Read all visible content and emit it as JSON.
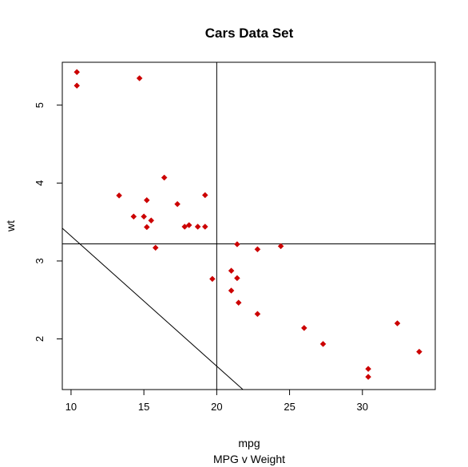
{
  "chart_data": {
    "type": "scatter",
    "title": "Cars Data Set",
    "xlabel": "mpg",
    "ylabel": "wt",
    "subtitle": "MPG v Weight",
    "xlim": [
      9.4,
      35.0
    ],
    "ylim": [
      1.35,
      5.55
    ],
    "xticks": [
      10,
      15,
      20,
      25,
      30
    ],
    "yticks": [
      2,
      3,
      4,
      5
    ],
    "grid": false,
    "legend": "none",
    "point_color": "#cc0000",
    "line_color": "#000000",
    "points": [
      {
        "x": 21.0,
        "y": 2.62
      },
      {
        "x": 21.0,
        "y": 2.875
      },
      {
        "x": 22.8,
        "y": 2.32
      },
      {
        "x": 21.4,
        "y": 3.215
      },
      {
        "x": 18.7,
        "y": 3.44
      },
      {
        "x": 18.1,
        "y": 3.46
      },
      {
        "x": 14.3,
        "y": 3.57
      },
      {
        "x": 24.4,
        "y": 3.19
      },
      {
        "x": 22.8,
        "y": 3.15
      },
      {
        "x": 19.2,
        "y": 3.44
      },
      {
        "x": 17.8,
        "y": 3.44
      },
      {
        "x": 16.4,
        "y": 4.07
      },
      {
        "x": 17.3,
        "y": 3.73
      },
      {
        "x": 15.2,
        "y": 3.78
      },
      {
        "x": 10.4,
        "y": 5.25
      },
      {
        "x": 10.4,
        "y": 5.424
      },
      {
        "x": 14.7,
        "y": 5.345
      },
      {
        "x": 32.4,
        "y": 2.2
      },
      {
        "x": 30.4,
        "y": 1.615
      },
      {
        "x": 33.9,
        "y": 1.835
      },
      {
        "x": 21.5,
        "y": 2.465
      },
      {
        "x": 15.5,
        "y": 3.52
      },
      {
        "x": 15.2,
        "y": 3.435
      },
      {
        "x": 13.3,
        "y": 3.84
      },
      {
        "x": 19.2,
        "y": 3.845
      },
      {
        "x": 27.3,
        "y": 1.935
      },
      {
        "x": 26.0,
        "y": 2.14
      },
      {
        "x": 30.4,
        "y": 1.513
      },
      {
        "x": 15.8,
        "y": 3.17
      },
      {
        "x": 19.7,
        "y": 2.77
      },
      {
        "x": 15.0,
        "y": 3.57
      },
      {
        "x": 21.4,
        "y": 2.78
      }
    ],
    "reference_lines": [
      {
        "kind": "vertical",
        "x": 20.0
      },
      {
        "kind": "horizontal",
        "y": 3.22
      },
      {
        "kind": "abline",
        "from": [
          9.4,
          3.42
        ],
        "to": [
          21.8,
          1.35
        ]
      }
    ]
  }
}
